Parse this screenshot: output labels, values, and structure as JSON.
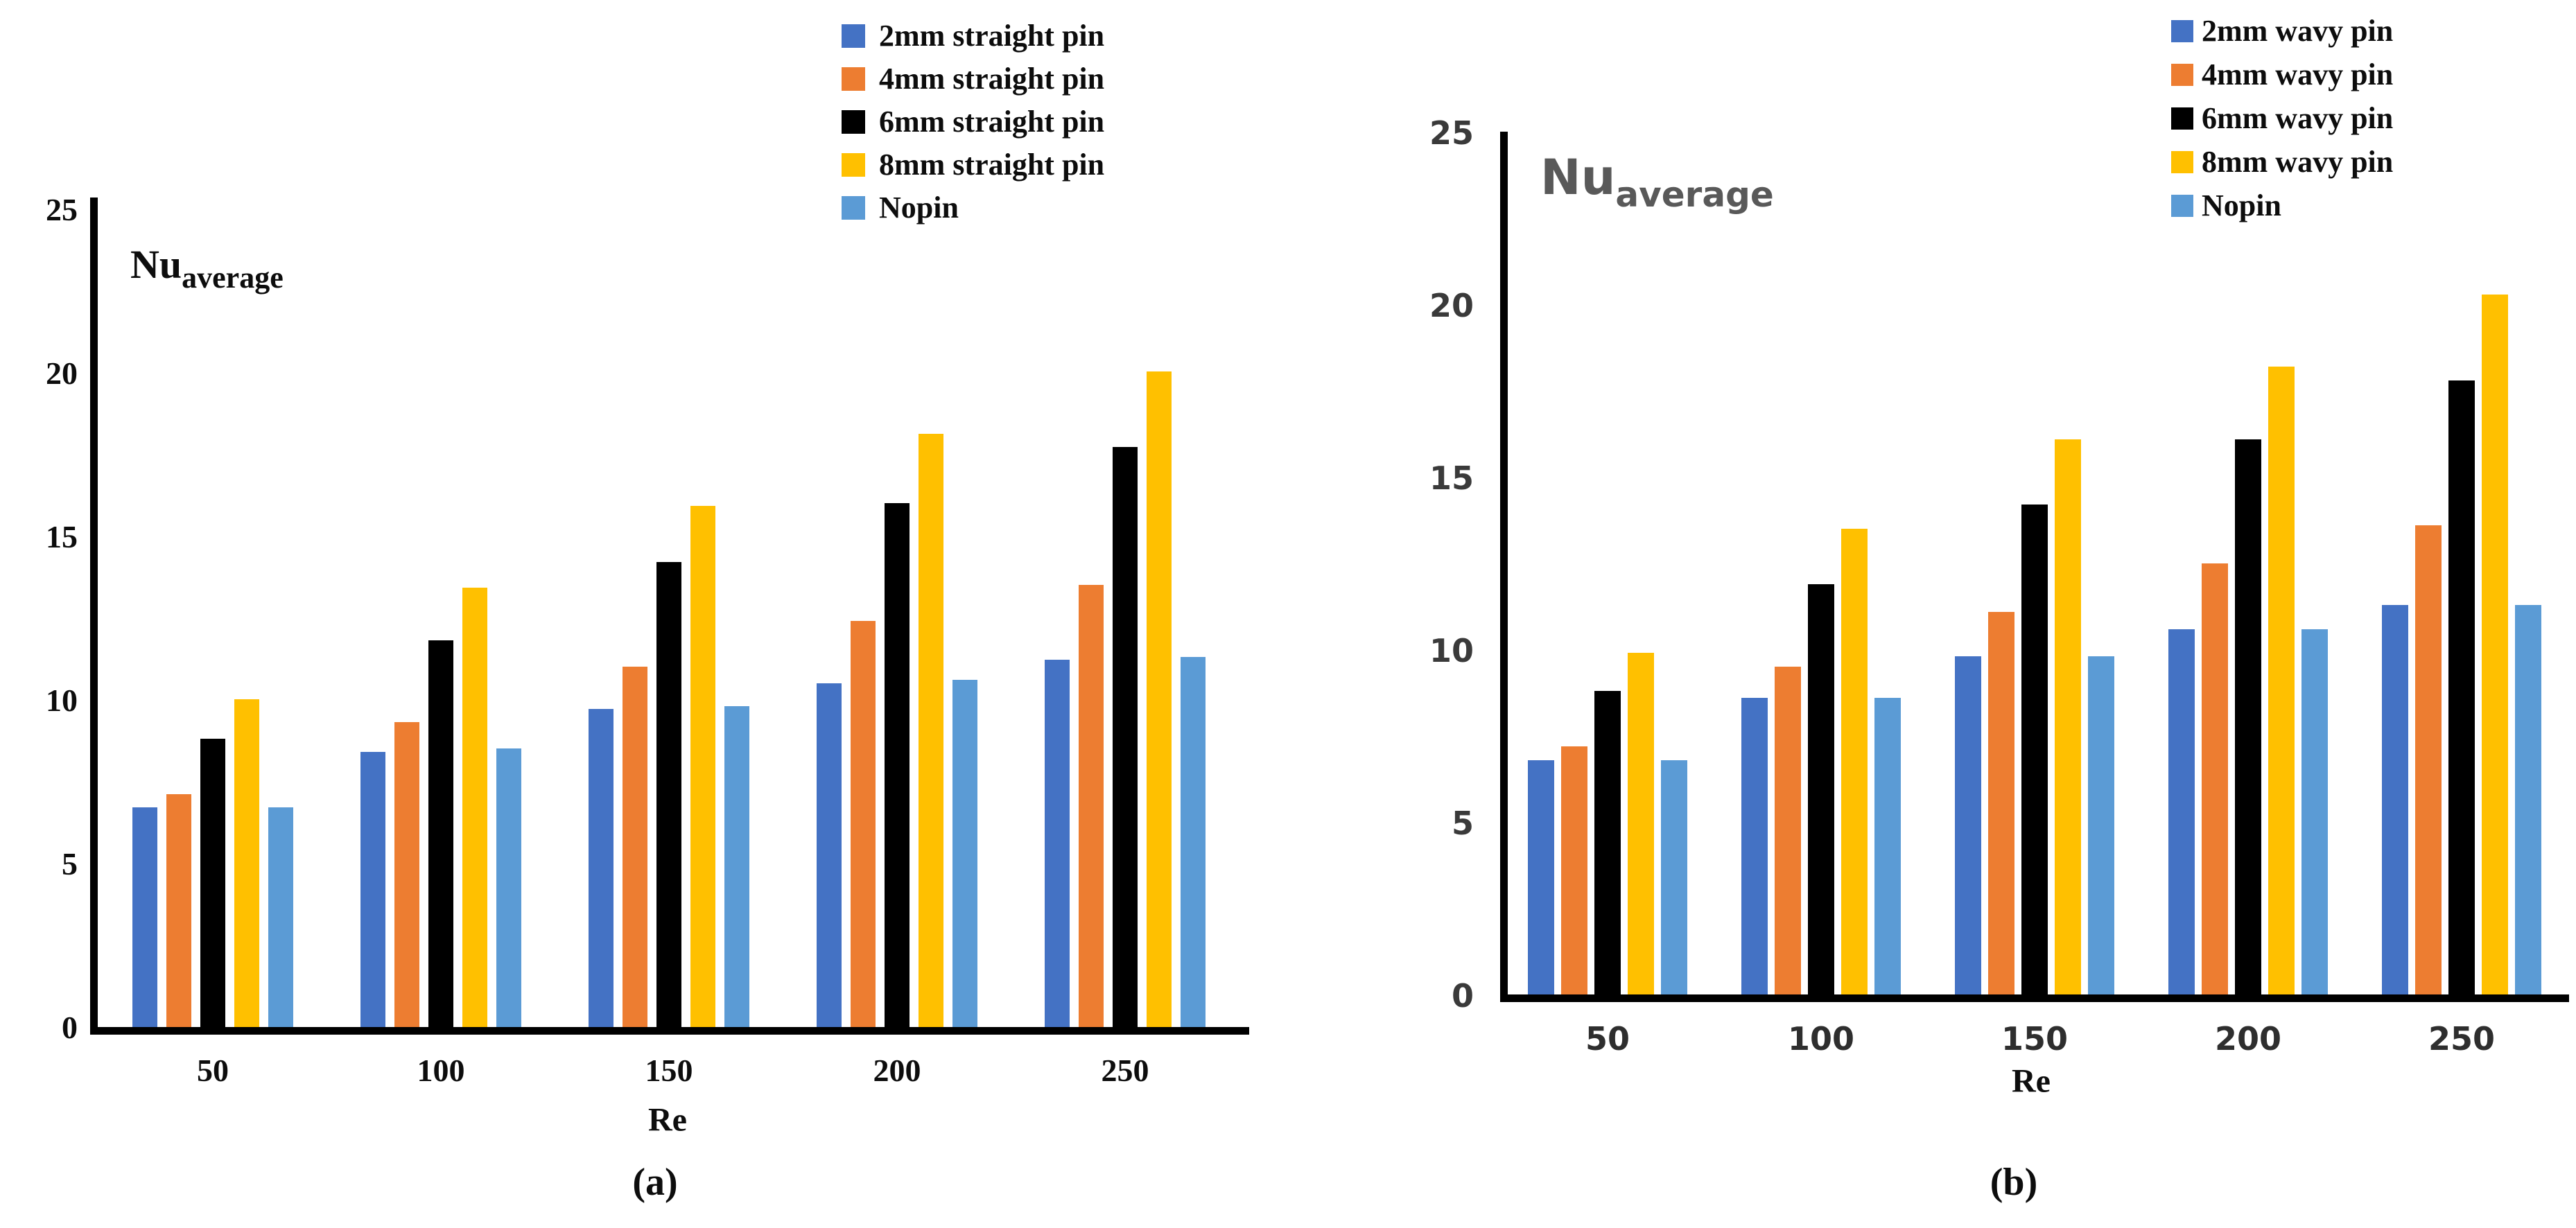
{
  "figure": {
    "background": "#ffffff",
    "panels": [
      "(a)",
      "(b)"
    ]
  },
  "palette": {
    "series_blue": "#4472C4",
    "series_orange": "#ED7D31",
    "series_black": "#000000",
    "series_yellow": "#FFC000",
    "series_light_blue": "#5B9BD5",
    "axis_black": "#000000",
    "right_tick_gray": "#3a3a3a",
    "right_title_gray": "#595959"
  },
  "chart_data": [
    {
      "panel": "(a)",
      "type": "bar",
      "y_axis_title": "Nu",
      "y_axis_title_sub": "average",
      "xlabel": "Re",
      "categories": [
        "50",
        "100",
        "150",
        "200",
        "250"
      ],
      "y_ticks": [
        "0",
        "5",
        "10",
        "15",
        "20",
        "25"
      ],
      "ylim": [
        0,
        25
      ],
      "grid": "off",
      "legend_position": "top-center",
      "series": [
        {
          "name": "2mm straight pin",
          "color": "#4472C4",
          "values": [
            6.7,
            8.4,
            9.7,
            10.5,
            11.2
          ]
        },
        {
          "name": "4mm straight pin",
          "color": "#ED7D31",
          "values": [
            7.1,
            9.3,
            11.0,
            12.4,
            13.5
          ]
        },
        {
          "name": "6mm straight pin",
          "color": "#000000",
          "values": [
            8.8,
            11.8,
            14.2,
            16.0,
            17.7
          ]
        },
        {
          "name": "8mm straight pin",
          "color": "#FFC000",
          "values": [
            10.0,
            13.4,
            15.9,
            18.1,
            20.0
          ]
        },
        {
          "name": "Nopin",
          "color": "#5B9BD5",
          "values": [
            6.7,
            8.5,
            9.8,
            10.6,
            11.3
          ]
        }
      ]
    },
    {
      "panel": "(b)",
      "type": "bar",
      "y_axis_title": "Nu",
      "y_axis_title_sub": "average",
      "xlabel": "Re",
      "categories": [
        "50",
        "100",
        "150",
        "200",
        "250"
      ],
      "y_ticks": [
        "0",
        "5",
        "10",
        "15",
        "20",
        "25"
      ],
      "ylim": [
        0,
        25
      ],
      "grid": "off",
      "legend_position": "top-center",
      "series": [
        {
          "name": "2mm wavy pin",
          "color": "#4472C4",
          "values": [
            6.8,
            8.6,
            9.8,
            10.6,
            11.3
          ]
        },
        {
          "name": "4mm wavy pin",
          "color": "#ED7D31",
          "values": [
            7.2,
            9.5,
            11.1,
            12.5,
            13.6
          ]
        },
        {
          "name": "6mm wavy pin",
          "color": "#000000",
          "values": [
            8.8,
            11.9,
            14.2,
            16.1,
            17.8
          ]
        },
        {
          "name": "8mm wavy pin",
          "color": "#FFC000",
          "values": [
            9.9,
            13.5,
            16.1,
            18.2,
            20.3
          ]
        },
        {
          "name": "Nopin",
          "color": "#5B9BD5",
          "values": [
            6.8,
            8.6,
            9.8,
            10.6,
            11.3
          ]
        }
      ]
    }
  ]
}
